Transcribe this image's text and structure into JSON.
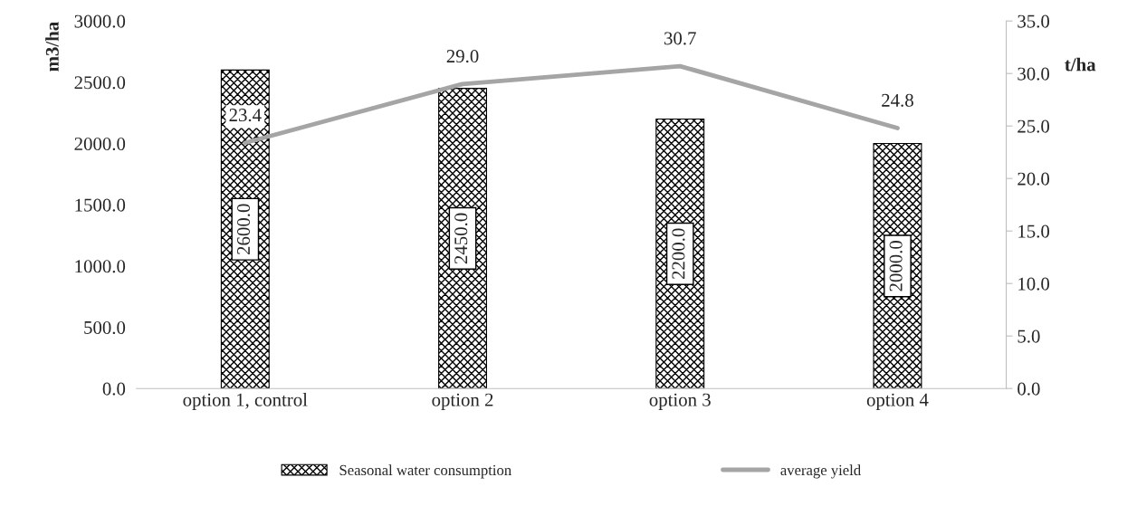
{
  "chart_data": {
    "type": "bar",
    "categories": [
      "option 1, control",
      "option 2",
      "option 3",
      "option 4"
    ],
    "ylabel": "m3/ha",
    "y2label": "t/ha",
    "series": [
      {
        "name": "Seasonal water consumption",
        "color": "#000000",
        "values": [
          2600,
          2450,
          2200,
          2000
        ],
        "value_labels": [
          "2600.0",
          "2450.0",
          "2200.0",
          "2000.0"
        ]
      },
      {
        "name": "average yield",
        "type": "line",
        "axis": "y2",
        "color": "#a5a5a5",
        "values": [
          23.4,
          29.0,
          30.7,
          24.8
        ],
        "value_labels": [
          "23.4",
          "29.0",
          "30.7",
          "24.8"
        ]
      }
    ],
    "ylim": [
      0,
      3000
    ],
    "yticks": [
      {
        "value": 0,
        "label": "0.0"
      },
      {
        "value": 500,
        "label": "500.0"
      },
      {
        "value": 1000,
        "label": "1000.0"
      },
      {
        "value": 1500,
        "label": "1500.0"
      },
      {
        "value": 2000,
        "label": "2000.0"
      },
      {
        "value": 2500,
        "label": "2500.0"
      },
      {
        "value": 3000,
        "label": "3000.0"
      }
    ],
    "y2lim": [
      0,
      35
    ],
    "y2ticks": [
      {
        "value": 0,
        "label": "0.0"
      },
      {
        "value": 5,
        "label": "5.0"
      },
      {
        "value": 10,
        "label": "10.0"
      },
      {
        "value": 15,
        "label": "15.0"
      },
      {
        "value": 20,
        "label": "20.0"
      },
      {
        "value": 25,
        "label": "25.0"
      },
      {
        "value": 30,
        "label": "30.0"
      },
      {
        "value": 35,
        "label": "35.0"
      }
    ],
    "grid": false,
    "legend": "bottom",
    "marker": "none",
    "line_style": "solid"
  }
}
